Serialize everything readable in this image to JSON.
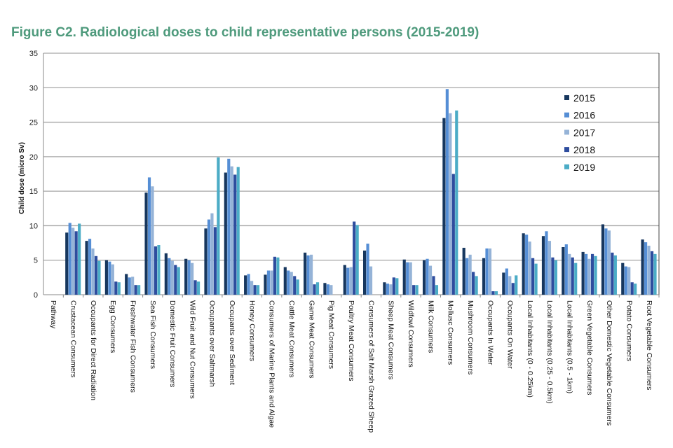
{
  "chart_data": {
    "type": "bar",
    "title": "Figure C2. Radiological doses to child representative persons (2015-2019)",
    "xlabel": "",
    "ylabel": "Child dose (micro Sv)",
    "ylim": [
      0,
      35
    ],
    "yticks": [
      "0",
      "5",
      "10",
      "15",
      "20",
      "25",
      "30",
      "35"
    ],
    "grid": true,
    "legend_position": "right",
    "categories": [
      "Pathway",
      "Crustacean Consumers",
      "Occupants for Direct Radiation",
      "Egg Consumers",
      "Freshwater Fish Consumers",
      "Sea Fish Consumers",
      "Domestic Fruit Consumers",
      "Wild Fruit and Nut Consumers",
      "Occupants over Saltmarsh",
      "Occupants over Sediment",
      "Honey Consumers",
      "Consumers of Marine Plants and Algae",
      "Cattle Meat Consumers",
      "Game Meat Consumers",
      "Pig Meat Consumers",
      "Poultry Meat Consumers",
      "Consumers of Salt Marsh Grazed Sheep",
      "Sheep Meat Consumers",
      "Wildfowl Consumers",
      "Milk Consumers",
      "Mollusc Consumers",
      "Mushroom Consumers",
      "Occupants In Water",
      "Occupants On Water",
      "Local Inhabitants (0 - 0.25km)",
      "Local Inhabitants (0.25 - 0.5km)",
      "Local Inhabitants (0.5 - 1km)",
      "Green Vegetable Consumers",
      "Other Domestic Vegetable Consumers",
      "Potato Consumers",
      "Root Vegetable Consumers"
    ],
    "series": [
      {
        "name": "2015",
        "color": "#17375e",
        "values": [
          null,
          9.0,
          7.8,
          5.0,
          3.0,
          14.8,
          6.0,
          5.2,
          9.6,
          17.7,
          2.8,
          2.9,
          4.0,
          6.1,
          1.7,
          4.3,
          6.4,
          1.8,
          5.1,
          5.0,
          25.6,
          6.8,
          5.3,
          3.2,
          8.9,
          8.5,
          6.9,
          6.2,
          10.2,
          4.6,
          8.0
        ]
      },
      {
        "name": "2016",
        "color": "#558ed5",
        "values": [
          null,
          10.4,
          8.1,
          4.8,
          2.5,
          17.0,
          5.3,
          5.0,
          10.9,
          19.7,
          3.0,
          3.5,
          3.5,
          5.7,
          1.5,
          3.9,
          7.4,
          1.6,
          4.7,
          5.2,
          29.8,
          5.3,
          6.7,
          3.8,
          8.7,
          9.2,
          7.3,
          5.9,
          9.6,
          4.1,
          7.6
        ]
      },
      {
        "name": "2017",
        "color": "#95b3d7",
        "values": [
          null,
          9.7,
          6.7,
          4.4,
          2.6,
          15.7,
          4.9,
          4.6,
          11.8,
          18.6,
          2.0,
          3.5,
          3.3,
          5.8,
          1.4,
          4.0,
          4.1,
          1.5,
          4.7,
          4.2,
          26.3,
          5.8,
          6.7,
          2.7,
          7.7,
          7.8,
          5.9,
          5.2,
          9.3,
          4.0,
          7.1
        ]
      },
      {
        "name": "2018",
        "color": "#2e4d9e",
        "values": [
          null,
          9.2,
          5.6,
          1.9,
          1.4,
          7.0,
          4.3,
          2.1,
          9.8,
          17.4,
          1.4,
          5.5,
          2.7,
          1.5,
          null,
          10.6,
          null,
          2.5,
          1.4,
          2.7,
          17.5,
          3.3,
          0.5,
          1.7,
          5.3,
          5.4,
          5.4,
          5.9,
          6.1,
          1.8,
          6.3
        ]
      },
      {
        "name": "2019",
        "color": "#4bacc6",
        "values": [
          null,
          10.3,
          4.9,
          1.8,
          1.4,
          7.2,
          4.0,
          1.9,
          19.9,
          18.5,
          1.4,
          5.4,
          2.2,
          1.8,
          null,
          10.1,
          null,
          2.4,
          1.4,
          1.4,
          26.7,
          2.7,
          0.5,
          2.8,
          4.5,
          5.0,
          4.6,
          5.6,
          5.7,
          1.6,
          5.9
        ]
      }
    ]
  }
}
